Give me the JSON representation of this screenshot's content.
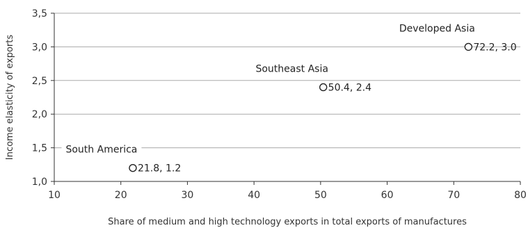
{
  "chart_data": {
    "type": "scatter",
    "title": "",
    "xlabel": "Share of medium and high technology exports in total exports of manufactures",
    "ylabel": "Income elasticity of exports",
    "xlim": [
      10,
      80
    ],
    "ylim": [
      1.0,
      3.5
    ],
    "x_ticks": [
      10,
      20,
      30,
      40,
      50,
      60,
      70,
      80
    ],
    "y_ticks": [
      1.0,
      1.5,
      2.0,
      2.5,
      3.0,
      3.5
    ],
    "y_tick_labels": [
      "1,0",
      "1,5",
      "2,0",
      "2,5",
      "3,0",
      "3,5"
    ],
    "grid": "horizontal",
    "points": [
      {
        "label": "South America",
        "x": 21.8,
        "y": 1.2,
        "value_text": "21.8, 1.2"
      },
      {
        "label": "Southeast Asia",
        "x": 50.4,
        "y": 2.4,
        "value_text": "50.4, 2.4"
      },
      {
        "label": "Developed Asia",
        "x": 72.2,
        "y": 3.0,
        "value_text": "72.2, 3.0"
      }
    ],
    "colors": {
      "grid": "#aaaaaa",
      "axis": "#333333",
      "marker": "#222222"
    }
  }
}
